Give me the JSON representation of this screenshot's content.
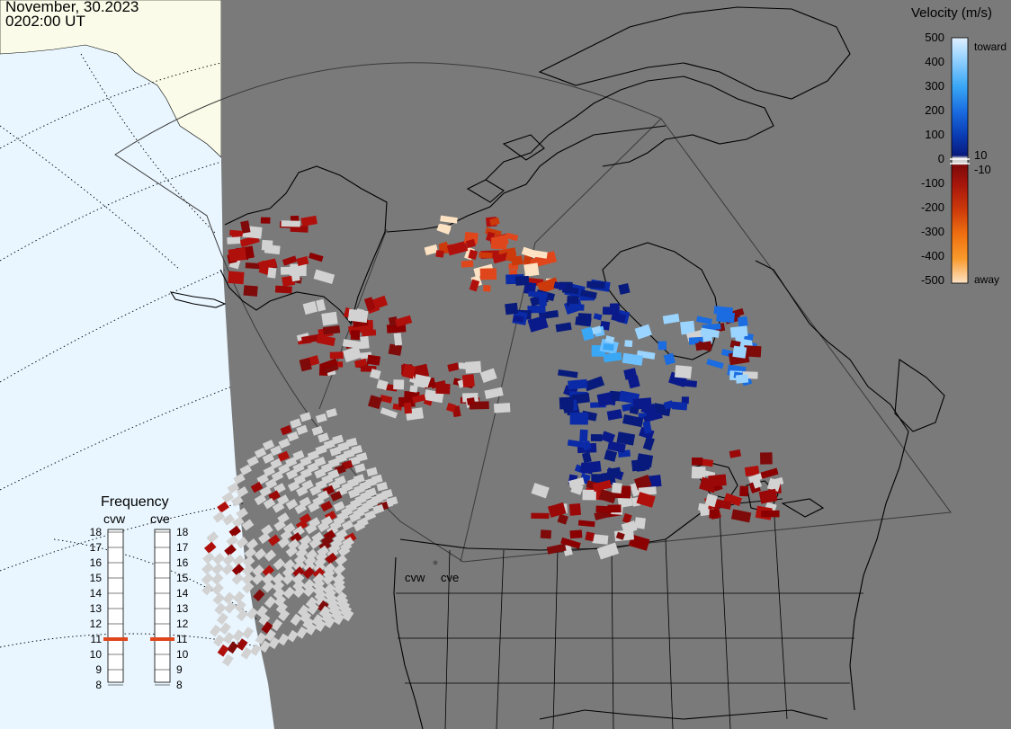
{
  "header": {
    "date": "November, 30.2023",
    "time": "0202:00 UT"
  },
  "colorbar": {
    "title": "Velocity (m/s)",
    "ticks": [
      "500",
      "400",
      "300",
      "200",
      "100",
      "0",
      "-100",
      "-200",
      "-300",
      "-400",
      "-500"
    ],
    "tick_values": [
      500,
      400,
      300,
      200,
      100,
      0,
      -100,
      -200,
      -300,
      -400,
      -500
    ],
    "small_ticks": [
      "10",
      "-10"
    ],
    "label_toward": "toward",
    "label_away": "away",
    "range": [
      -500,
      500
    ],
    "gradient_colors": [
      "#dfefff",
      "#9ad4ff",
      "#39a6f5",
      "#1a6ce0",
      "#0a3bb3",
      "#081b7c",
      "#d2d2d2",
      "#7e0a0a",
      "#a8160c",
      "#cc3a0c",
      "#ef6f10",
      "#f99a2c",
      "#fde2c4"
    ]
  },
  "frequency_panel": {
    "title": "Frequency",
    "radars": [
      {
        "name": "cvw",
        "frequency_mhz": 11
      },
      {
        "name": "cve",
        "frequency_mhz": 11
      }
    ],
    "scale": [
      "18",
      "17",
      "16",
      "15",
      "14",
      "13",
      "12",
      "11",
      "10",
      "9",
      "8"
    ],
    "marker_color": "#e0461c"
  },
  "map": {
    "radar_site_labels": [
      "cvw",
      "cve"
    ],
    "colors": {
      "ocean": "#e9f6ff",
      "sea_ice": "#fbfbe9",
      "night_shade": "#7a7a7a",
      "coastline": "#000000",
      "ground_scatter": "#d2d2d2"
    }
  }
}
